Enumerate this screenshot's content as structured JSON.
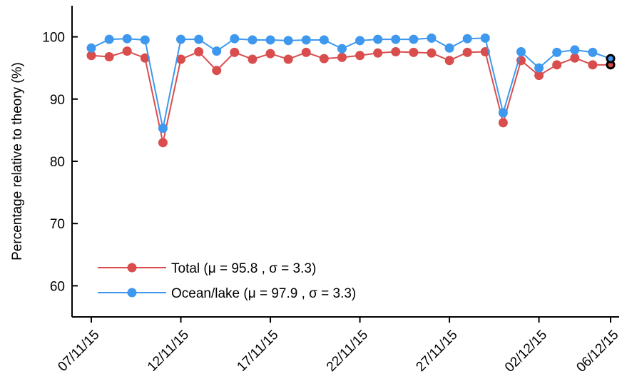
{
  "chart_data": {
    "type": "line",
    "title": "",
    "xlabel": "",
    "ylabel": "Percentage relative to theory (%)",
    "ylim": [
      55,
      105
    ],
    "yticks": [
      60,
      70,
      80,
      90,
      100
    ],
    "xticks": [
      "07/11/15",
      "12/11/15",
      "17/11/15",
      "22/11/15",
      "27/11/15",
      "02/12/15",
      "06/12/15"
    ],
    "x": [
      "07/11/15",
      "08/11/15",
      "09/11/15",
      "10/11/15",
      "11/11/15",
      "12/11/15",
      "13/11/15",
      "14/11/15",
      "15/11/15",
      "16/11/15",
      "17/11/15",
      "18/11/15",
      "19/11/15",
      "20/11/15",
      "21/11/15",
      "22/11/15",
      "23/11/15",
      "24/11/15",
      "25/11/15",
      "26/11/15",
      "27/11/15",
      "28/11/15",
      "29/11/15",
      "30/11/15",
      "01/12/15",
      "02/12/15",
      "03/12/15",
      "04/12/15",
      "05/12/15",
      "06/12/15"
    ],
    "grid": false,
    "legend_position": "bottom-left",
    "series": [
      {
        "name": "Total (μ = 95.8 , σ = 3.3)",
        "color": "#d94d4d",
        "values": [
          97.0,
          96.8,
          97.7,
          96.6,
          83.0,
          96.4,
          97.6,
          94.6,
          97.5,
          96.4,
          97.3,
          96.4,
          97.5,
          96.5,
          96.7,
          97.0,
          97.4,
          97.6,
          97.5,
          97.4,
          96.2,
          97.5,
          97.6,
          86.2,
          96.2,
          93.8,
          95.5,
          96.6,
          95.5,
          95.5
        ]
      },
      {
        "name": "Ocean/lake (μ = 97.9 , σ = 3.3)",
        "color": "#3d98ee",
        "values": [
          98.2,
          99.6,
          99.7,
          99.5,
          85.3,
          99.6,
          99.6,
          97.7,
          99.7,
          99.5,
          99.5,
          99.4,
          99.5,
          99.5,
          98.1,
          99.4,
          99.6,
          99.6,
          99.6,
          99.8,
          98.2,
          99.7,
          99.8,
          87.8,
          97.6,
          95.0,
          97.5,
          97.9,
          97.5,
          96.5
        ]
      }
    ],
    "final_point_marker": "black-ring"
  }
}
